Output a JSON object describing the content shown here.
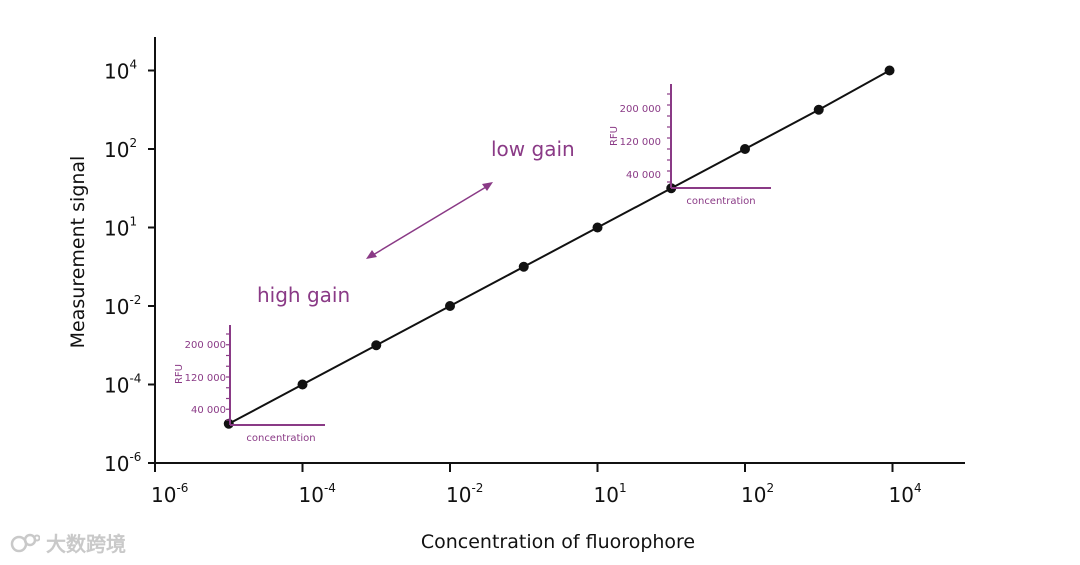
{
  "chart_data": {
    "type": "scatter",
    "scale": "log",
    "xlabel": "Concentration of fluorophore",
    "ylabel": "Measurement signal",
    "x_ticks": [
      {
        "base": "10",
        "exp": "-6"
      },
      {
        "base": "10",
        "exp": "-4"
      },
      {
        "base": "10",
        "exp": "-2"
      },
      {
        "base": "10",
        "exp": "1"
      },
      {
        "base": "10",
        "exp": "2"
      },
      {
        "base": "10",
        "exp": "4"
      }
    ],
    "y_ticks": [
      {
        "base": "10",
        "exp": "-6"
      },
      {
        "base": "10",
        "exp": "-4"
      },
      {
        "base": "10",
        "exp": "-2"
      },
      {
        "base": "10",
        "exp": "1"
      },
      {
        "base": "10",
        "exp": "2"
      },
      {
        "base": "10",
        "exp": "4"
      }
    ],
    "points_tick_index": [
      [
        0.5,
        0.5
      ],
      [
        1.0,
        1.0
      ],
      [
        1.5,
        1.5
      ],
      [
        2.0,
        2.0
      ],
      [
        2.5,
        2.5
      ],
      [
        3.0,
        3.0
      ],
      [
        3.5,
        3.5
      ],
      [
        4.0,
        4.0
      ],
      [
        4.5,
        4.5
      ],
      [
        4.98,
        5.0
      ]
    ],
    "line": true,
    "grid": false,
    "annotations": {
      "low_gain": "low gain",
      "high_gain": "high gain"
    },
    "insets": [
      {
        "ylabel": "RFU",
        "xlabel": "concentration",
        "yticks": [
          "200 000",
          "120 000",
          "40 000"
        ]
      },
      {
        "ylabel": "RFU",
        "xlabel": "concentration",
        "yticks": [
          "200 000",
          "120 000",
          "40 000"
        ]
      }
    ],
    "colors": {
      "main": "#111111",
      "accent": "#8a3a86"
    }
  },
  "watermark": {
    "text": "大数跨境"
  }
}
